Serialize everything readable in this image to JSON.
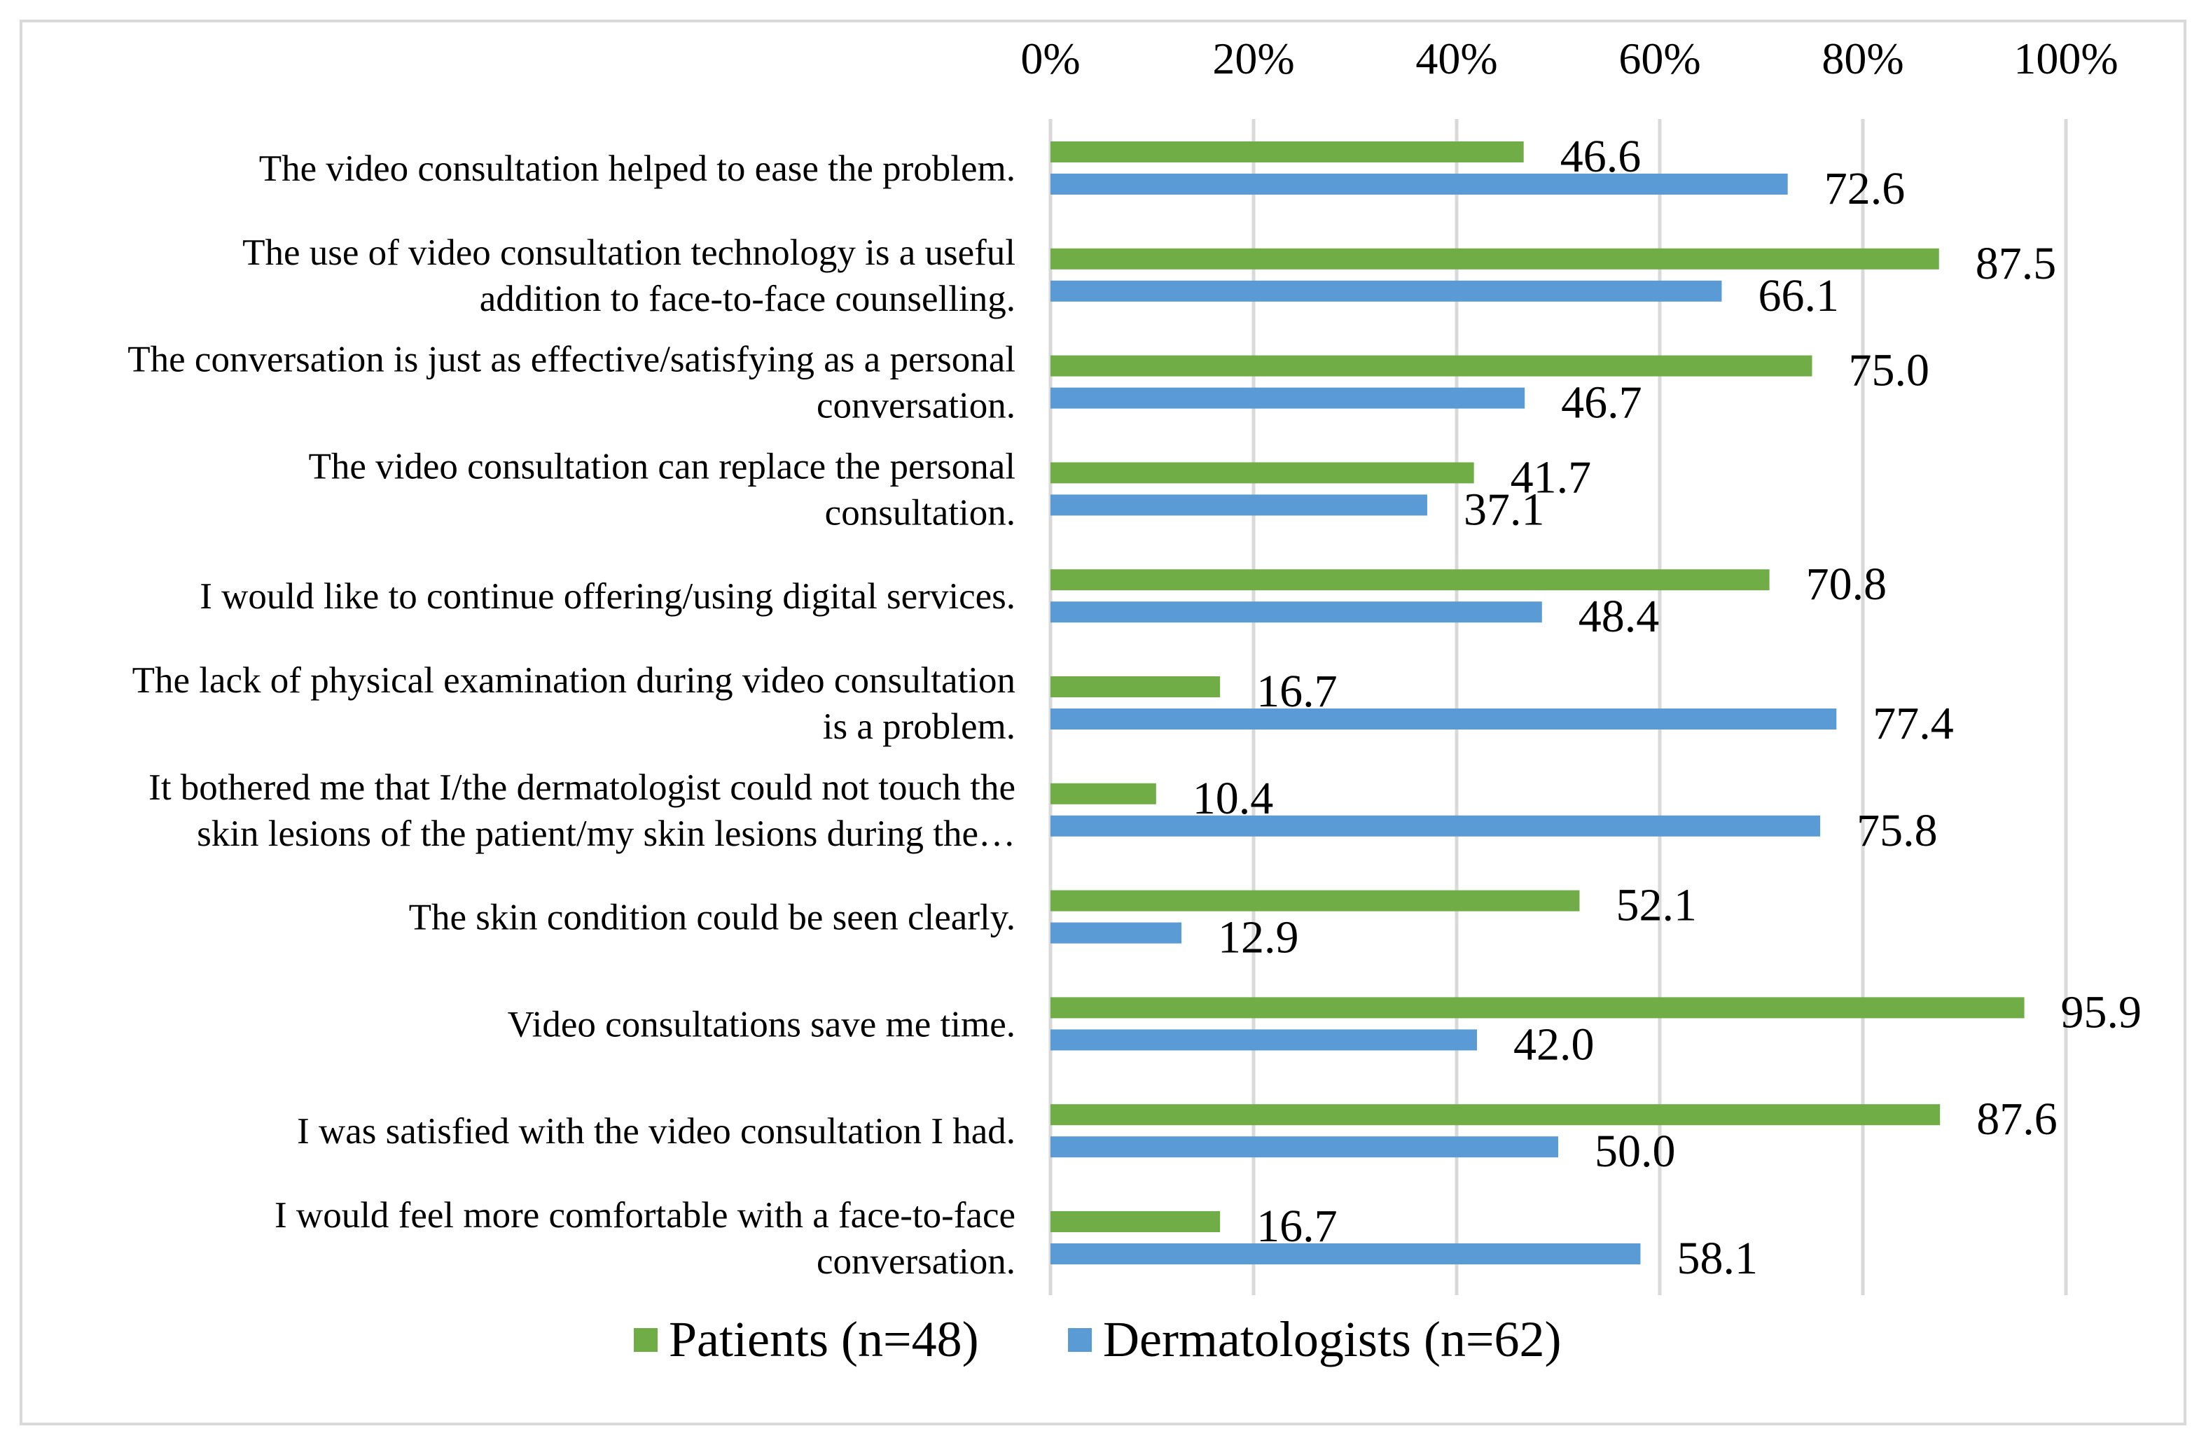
{
  "chart_data": {
    "type": "bar",
    "orientation": "horizontal",
    "title": "",
    "xlabel": "",
    "ylabel": "",
    "xlim": [
      0,
      100
    ],
    "x_ticks": [
      "0%",
      "20%",
      "40%",
      "60%",
      "80%",
      "100%"
    ],
    "x_axis_position": "top",
    "grid": true,
    "legend_position": "bottom",
    "categories": [
      "The video consultation helped to ease the problem.",
      "The use of video consultation technology is a useful\naddition to face-to-face counselling.",
      "The conversation is just as effective/satisfying as a personal\nconversation.",
      "The video consultation can replace the personal\nconsultation.",
      "I would like to continue offering/using digital services.",
      "The lack of physical examination during video consultation\nis a problem.",
      "It bothered me that I/the dermatologist could not touch the\nskin lesions of the patient/my skin lesions during the…",
      "The skin condition could be seen clearly.",
      "Video consultations save me time.",
      "I was satisfied with the video consultation I had.",
      "I would feel more comfortable with a face-to-face\nconversation."
    ],
    "series": [
      {
        "name": "Patients (n=48)",
        "color": "#70AD47",
        "values": [
          46.6,
          87.5,
          75.0,
          41.7,
          70.8,
          16.7,
          10.4,
          52.1,
          95.9,
          87.6,
          16.7
        ],
        "labels": [
          "46.6",
          "87.5",
          "75.0",
          "41.7",
          "70.8",
          "16.7",
          "10.4",
          "52.1",
          "95.9",
          "87.6",
          "16.7"
        ]
      },
      {
        "name": "Dermatologists (n=62)",
        "color": "#5B9BD5",
        "values": [
          72.6,
          66.1,
          46.7,
          37.1,
          48.4,
          77.4,
          75.8,
          12.9,
          42.0,
          50.0,
          58.1
        ],
        "labels": [
          "72.6",
          "66.1",
          "46.7",
          "37.1",
          "48.4",
          "77.4",
          "75.8",
          "12.9",
          "42.0",
          "50.0",
          "58.1"
        ]
      }
    ]
  }
}
